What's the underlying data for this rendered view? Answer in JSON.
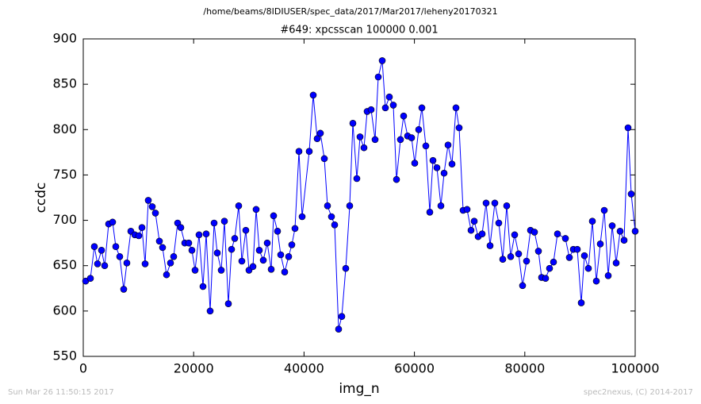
{
  "chart_data": {
    "type": "line",
    "suptitle": "/home/beams/8IDIUSER/spec_data/2017/Mar2017/leheny20170321",
    "title": "#649: xpcsscan 100000 0.001",
    "xlabel": "img_n",
    "ylabel": "ccdc",
    "footer_left": "Sun Mar 26 11:50:15 2017",
    "footer_right": "spec2nexus, (C) 2014-2017",
    "xlim": [
      0,
      100000
    ],
    "xticks": [
      0,
      20000,
      40000,
      60000,
      80000,
      100000
    ],
    "ylim": [
      550,
      900
    ],
    "yticks": [
      550,
      600,
      650,
      700,
      750,
      800,
      850,
      900
    ],
    "grid": false,
    "x": [
      431,
      1293,
      2012,
      2586,
      3305,
      3879,
      4598,
      5316,
      5891,
      6609,
      7328,
      7902,
      8621,
      9339,
      10058,
      10632,
      11207,
      11782,
      12500,
      13075,
      13793,
      14368,
      15086,
      15805,
      16379,
      17098,
      17672,
      18391,
      19109,
      19684,
      20259,
      20977,
      21695,
      22270,
      22989,
      23707,
      24282,
      25000,
      25575,
      26293,
      26868,
      27443,
      28161,
      28736,
      29454,
      30029,
      30747,
      31322,
      31897,
      32615,
      33334,
      34052,
      34483,
      35201,
      35776,
      36494,
      37213,
      37787,
      38362,
      39080,
      39655,
      40948,
      41667,
      42385,
      42960,
      43678,
      44253,
      44971,
      45546,
      46264,
      46839,
      47558,
      48276,
      48851,
      49569,
      50144,
      50862,
      51437,
      52155,
      52874,
      53448,
      54167,
      54741,
      55460,
      56178,
      56753,
      57471,
      58046,
      58764,
      59483,
      60057,
      60776,
      61351,
      62069,
      62788,
      63362,
      64080,
      64799,
      65374,
      66092,
      66811,
      67529,
      68104,
      68822,
      69541,
      70259,
      70834,
      71552,
      72271,
      72989,
      73707,
      74569,
      75287,
      76006,
      76724,
      77443,
      78161,
      78879,
      79598,
      80316,
      81035,
      81753,
      82472,
      83046,
      83765,
      84483,
      85201,
      85920,
      87356,
      88075,
      88793,
      89512,
      90230,
      90805,
      91523,
      92242,
      92960,
      93679,
      94397,
      95116,
      95834,
      96553,
      97271,
      97990,
      98708,
      99282,
      100000
    ],
    "series": [
      {
        "color": "#0000ff",
        "values": [
          633,
          636,
          671,
          652,
          667,
          650,
          696,
          698,
          671,
          660,
          624,
          653,
          688,
          684,
          683,
          692,
          652,
          722,
          715,
          708,
          677,
          670,
          640,
          653,
          660,
          697,
          692,
          675,
          675,
          667,
          645,
          684,
          627,
          685,
          600,
          697,
          664,
          645,
          699,
          608,
          668,
          680,
          716,
          655,
          689,
          645,
          649,
          712,
          667,
          656,
          675,
          646,
          705,
          688,
          662,
          643,
          660,
          673,
          691,
          776,
          704,
          776,
          838,
          790,
          796,
          768,
          716,
          704,
          695,
          580,
          594,
          647,
          716,
          807,
          746,
          792,
          780,
          820,
          822,
          789,
          858,
          876,
          824,
          836,
          827,
          745,
          789,
          815,
          793,
          791,
          763,
          800,
          824,
          782,
          709,
          766,
          758,
          716,
          752,
          783,
          762,
          824,
          802,
          711,
          712,
          689,
          699,
          682,
          685,
          719,
          672,
          719,
          697,
          657,
          716,
          660,
          684,
          663,
          628,
          655,
          689,
          687,
          666,
          637,
          636,
          647,
          654,
          685,
          680,
          659,
          668,
          668,
          609,
          661,
          647,
          699,
          633,
          674,
          711,
          639,
          694,
          653,
          688,
          678,
          802,
          729,
          688
        ]
      }
    ]
  }
}
